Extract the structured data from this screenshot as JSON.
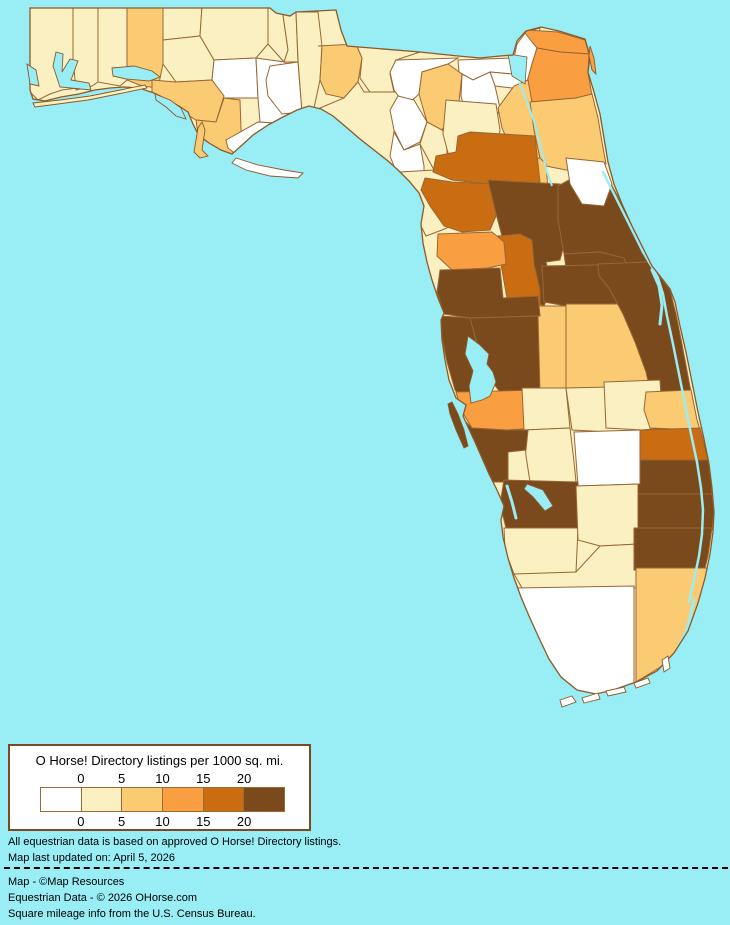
{
  "legend": {
    "title": "O Horse! Directory listings per 1000 sq. mi.",
    "tick_labels": [
      "0",
      "5",
      "10",
      "15",
      "20"
    ],
    "colors": [
      "#FFFFFF",
      "#FAF0C2",
      "#FBCB74",
      "#F99F41",
      "#C96C12",
      "#7B4A1C"
    ],
    "box_border_color": "#7B4A1E"
  },
  "notes": {
    "line1": "All equestrian data is based on approved O Horse! Directory listings.",
    "line2": "Map last updated on: April 5, 2026"
  },
  "credits": {
    "line1": "Map - ©Map Resources",
    "line2": "Equestrian Data - © 2026 OHorse.com",
    "line3": "Square mileage info from the U.S. Census Bureau."
  },
  "map": {
    "water_color": "#99EDF5",
    "land_base_color": "#FAF0C2",
    "county_border_color": "#996633",
    "coast_color": "#8A5A28",
    "level_colors": [
      "#FFFFFF",
      "#FAF0C2",
      "#FBCB74",
      "#F99F41",
      "#C96C12",
      "#7B4A1C"
    ],
    "regions": [
      {
        "id": "escambia",
        "level": 1
      },
      {
        "id": "santa-rosa",
        "level": 1
      },
      {
        "id": "okaloosa",
        "level": 1
      },
      {
        "id": "walton",
        "level": 2
      },
      {
        "id": "holmes",
        "level": 1
      },
      {
        "id": "washington",
        "level": 1
      },
      {
        "id": "jackson",
        "level": 1
      },
      {
        "id": "calhoun",
        "level": 0
      },
      {
        "id": "bay",
        "level": 2
      },
      {
        "id": "gulf",
        "level": 2
      },
      {
        "id": "liberty",
        "level": 0
      },
      {
        "id": "franklin",
        "level": 0
      },
      {
        "id": "gadsden",
        "level": 1
      },
      {
        "id": "leon",
        "level": 1
      },
      {
        "id": "wakulla",
        "level": 0
      },
      {
        "id": "jefferson",
        "level": 1
      },
      {
        "id": "madison",
        "level": 2
      },
      {
        "id": "taylor",
        "level": 1
      },
      {
        "id": "hamilton",
        "level": 1
      },
      {
        "id": "suwannee",
        "level": 0
      },
      {
        "id": "columbia",
        "level": 2
      },
      {
        "id": "lafayette",
        "level": 0
      },
      {
        "id": "dixie",
        "level": 0
      },
      {
        "id": "gilchrist",
        "level": 1
      },
      {
        "id": "levy",
        "level": 1
      },
      {
        "id": "union",
        "level": 0
      },
      {
        "id": "baker",
        "level": 0
      },
      {
        "id": "bradford",
        "level": 0
      },
      {
        "id": "nassau",
        "level": 3
      },
      {
        "id": "duval",
        "level": 3
      },
      {
        "id": "alachua",
        "level": 1
      },
      {
        "id": "clay",
        "level": 2
      },
      {
        "id": "st-johns",
        "level": 2
      },
      {
        "id": "putnam",
        "level": 2
      },
      {
        "id": "marion",
        "level": 4
      },
      {
        "id": "citrus",
        "level": 4
      },
      {
        "id": "lake",
        "level": 5
      },
      {
        "id": "volusia",
        "level": 5
      },
      {
        "id": "flagler",
        "level": 0
      },
      {
        "id": "seminole",
        "level": 5
      },
      {
        "id": "orange",
        "level": 5
      },
      {
        "id": "osceola",
        "level": 2
      },
      {
        "id": "polk",
        "level": 2
      },
      {
        "id": "brevard",
        "level": 5
      },
      {
        "id": "sumter",
        "level": 4
      },
      {
        "id": "hernando",
        "level": 3
      },
      {
        "id": "pasco",
        "level": 5
      },
      {
        "id": "pinellas",
        "level": 5
      },
      {
        "id": "hillsborough",
        "level": 5
      },
      {
        "id": "manatee",
        "level": 3
      },
      {
        "id": "hardee",
        "level": 1
      },
      {
        "id": "desoto",
        "level": 1
      },
      {
        "id": "highlands",
        "level": 1
      },
      {
        "id": "okeechobee",
        "level": 1
      },
      {
        "id": "indian-river",
        "level": 2
      },
      {
        "id": "st-lucie",
        "level": 4
      },
      {
        "id": "martin",
        "level": 5
      },
      {
        "id": "palm-beach",
        "level": 5
      },
      {
        "id": "glades",
        "level": 0
      },
      {
        "id": "sarasota",
        "level": 5
      },
      {
        "id": "charlotte",
        "level": 5
      },
      {
        "id": "lee",
        "level": 1
      },
      {
        "id": "hendry",
        "level": 1
      },
      {
        "id": "collier",
        "level": 1
      },
      {
        "id": "broward",
        "level": 5
      },
      {
        "id": "miami-dade",
        "level": 2
      },
      {
        "id": "monroe",
        "level": 0
      }
    ]
  }
}
